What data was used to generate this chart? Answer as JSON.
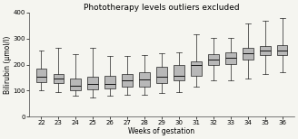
{
  "title": "Phototherapy levels outliers excluded",
  "xlabel": "Weeks of gestation",
  "ylabel": "Bilirubin (μmol/l)",
  "weeks": [
    22,
    23,
    24,
    25,
    26,
    27,
    28,
    29,
    30,
    31,
    32,
    33,
    34,
    35,
    36
  ],
  "ylim": [
    0,
    400
  ],
  "yticks": [
    0,
    100,
    200,
    300,
    400
  ],
  "boxes": [
    {
      "week": 22,
      "whislo": 100,
      "q1": 132,
      "med": 153,
      "q3": 185,
      "whishi": 255
    },
    {
      "week": 23,
      "whislo": 95,
      "q1": 128,
      "med": 147,
      "q3": 163,
      "whishi": 265
    },
    {
      "week": 24,
      "whislo": 80,
      "q1": 103,
      "med": 120,
      "q3": 148,
      "whishi": 240
    },
    {
      "week": 25,
      "whislo": 75,
      "q1": 105,
      "med": 127,
      "q3": 155,
      "whishi": 265
    },
    {
      "week": 26,
      "whislo": 80,
      "q1": 108,
      "med": 126,
      "q3": 158,
      "whishi": 235
    },
    {
      "week": 27,
      "whislo": 85,
      "q1": 115,
      "med": 138,
      "q3": 163,
      "whishi": 235
    },
    {
      "week": 28,
      "whislo": 85,
      "q1": 117,
      "med": 142,
      "q3": 170,
      "whishi": 238
    },
    {
      "week": 29,
      "whislo": 90,
      "q1": 130,
      "med": 153,
      "q3": 190,
      "whishi": 245
    },
    {
      "week": 30,
      "whislo": 95,
      "q1": 138,
      "med": 156,
      "q3": 197,
      "whishi": 248
    },
    {
      "week": 31,
      "whislo": 115,
      "q1": 157,
      "med": 198,
      "q3": 212,
      "whishi": 315
    },
    {
      "week": 32,
      "whislo": 140,
      "q1": 197,
      "med": 218,
      "q3": 242,
      "whishi": 303
    },
    {
      "week": 33,
      "whislo": 140,
      "q1": 202,
      "med": 228,
      "q3": 248,
      "whishi": 303
    },
    {
      "week": 34,
      "whislo": 145,
      "q1": 218,
      "med": 245,
      "q3": 265,
      "whishi": 358
    },
    {
      "week": 35,
      "whislo": 165,
      "q1": 238,
      "med": 255,
      "q3": 270,
      "whishi": 368
    },
    {
      "week": 36,
      "whislo": 170,
      "q1": 238,
      "med": 255,
      "q3": 275,
      "whishi": 378
    }
  ],
  "box_facecolor": "#b8b8b8",
  "box_edgecolor": "#222222",
  "median_color": "#111111",
  "whisker_color": "#222222",
  "cap_color": "#222222",
  "title_fontsize": 6.5,
  "label_fontsize": 5.5,
  "tick_fontsize": 5.0,
  "background_color": "#f5f5f0"
}
